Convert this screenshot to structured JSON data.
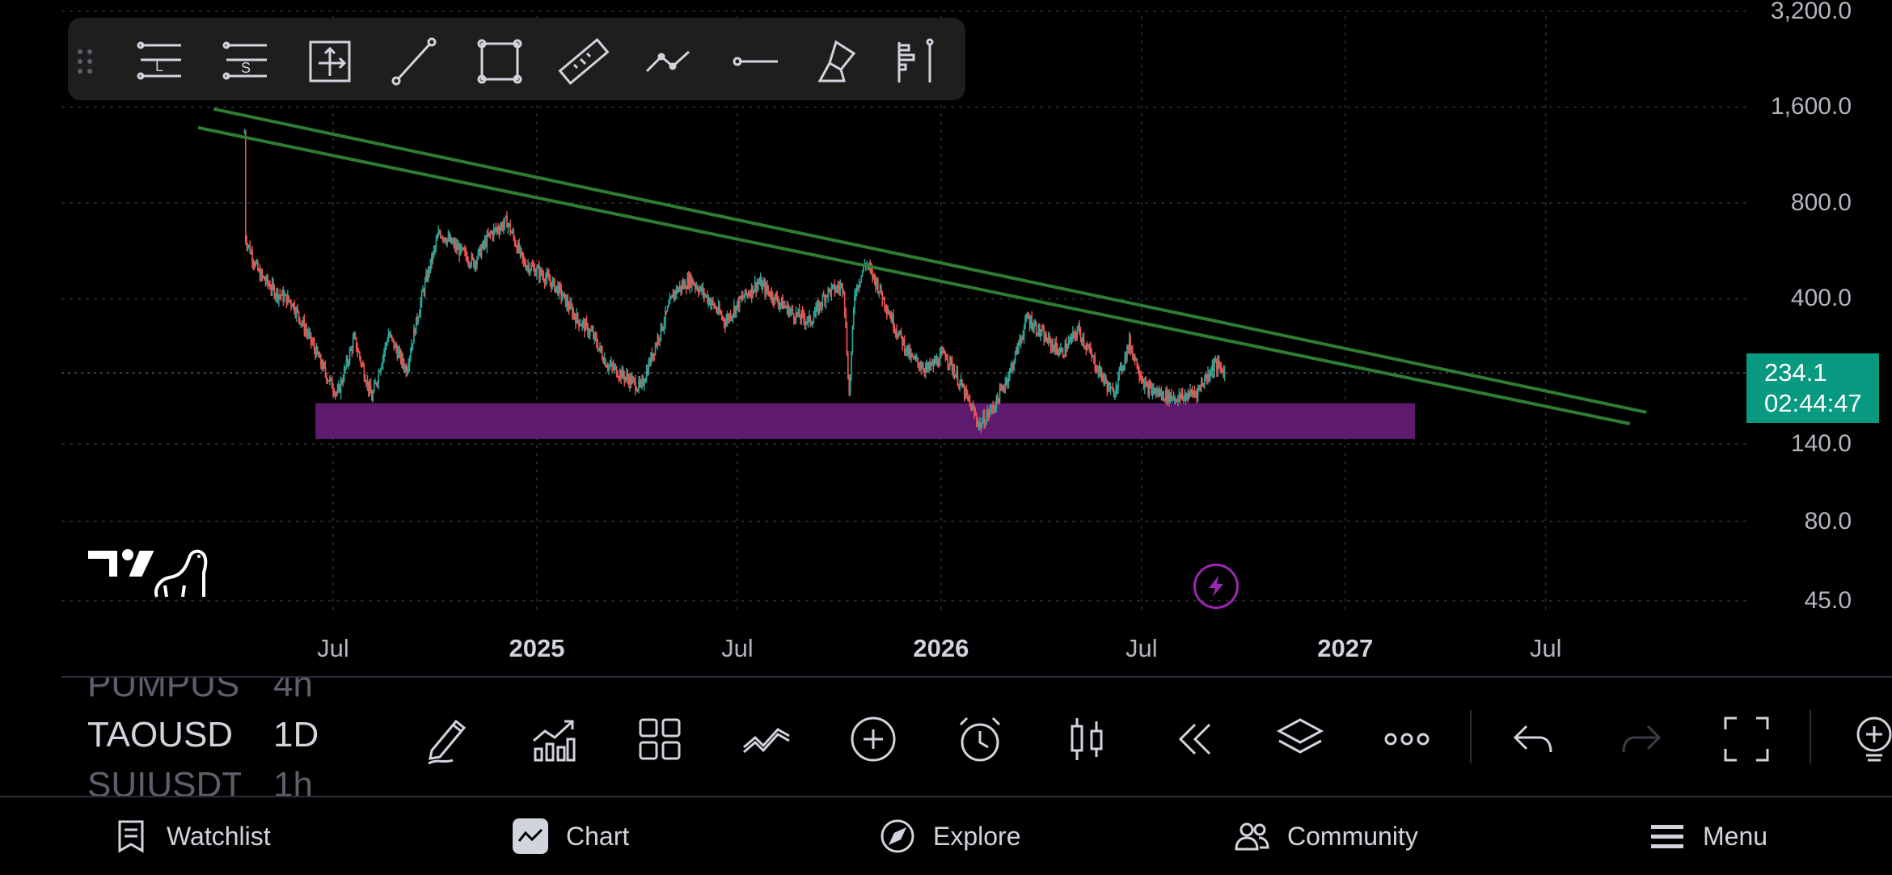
{
  "chart_data": {
    "type": "candlestick",
    "symbol": "TAOUSD",
    "interval": "1D",
    "y_scale": "log",
    "price_axis_labels": [
      "3,200.0",
      "1,600.0",
      "800.0",
      "400.0",
      "140.0",
      "80.0",
      "45.0"
    ],
    "price_axis_values": [
      3200,
      1600,
      800,
      400,
      140,
      80,
      45
    ],
    "time_axis_labels": [
      {
        "label": "Jul",
        "date": "2024-07-01",
        "bold": false
      },
      {
        "label": "2025",
        "date": "2025-01-01",
        "bold": true
      },
      {
        "label": "Jul",
        "date": "2025-07-01",
        "bold": false
      },
      {
        "label": "2026",
        "date": "2026-01-01",
        "bold": true
      },
      {
        "label": "Jul",
        "date": "2026-07-01",
        "bold": false
      },
      {
        "label": "2027",
        "date": "2027-01-01",
        "bold": true
      },
      {
        "label": "Jul",
        "date": "2027-07-01",
        "bold": false
      }
    ],
    "price_path": [
      [
        "2024-04-12",
        1330
      ],
      [
        "2024-04-13",
        620
      ],
      [
        "2024-04-25",
        480
      ],
      [
        "2024-05-10",
        420
      ],
      [
        "2024-05-25",
        390
      ],
      [
        "2024-06-10",
        300
      ],
      [
        "2024-06-25",
        230
      ],
      [
        "2024-07-05",
        200
      ],
      [
        "2024-07-20",
        300
      ],
      [
        "2024-08-05",
        195
      ],
      [
        "2024-08-20",
        310
      ],
      [
        "2024-09-05",
        240
      ],
      [
        "2024-09-20",
        420
      ],
      [
        "2024-10-05",
        650
      ],
      [
        "2024-10-20",
        580
      ],
      [
        "2024-11-05",
        520
      ],
      [
        "2024-11-20",
        640
      ],
      [
        "2024-12-05",
        700
      ],
      [
        "2024-12-20",
        520
      ],
      [
        "2025-01-05",
        480
      ],
      [
        "2025-01-20",
        430
      ],
      [
        "2025-02-05",
        350
      ],
      [
        "2025-02-20",
        310
      ],
      [
        "2025-03-05",
        250
      ],
      [
        "2025-03-20",
        230
      ],
      [
        "2025-04-05",
        210
      ],
      [
        "2025-04-20",
        300
      ],
      [
        "2025-05-05",
        420
      ],
      [
        "2025-05-20",
        460
      ],
      [
        "2025-06-05",
        400
      ],
      [
        "2025-06-20",
        340
      ],
      [
        "2025-07-05",
        400
      ],
      [
        "2025-07-20",
        450
      ],
      [
        "2025-08-05",
        400
      ],
      [
        "2025-08-20",
        360
      ],
      [
        "2025-09-05",
        340
      ],
      [
        "2025-09-20",
        420
      ],
      [
        "2025-10-05",
        440
      ],
      [
        "2025-10-10",
        200
      ],
      [
        "2025-10-15",
        420
      ],
      [
        "2025-10-25",
        520
      ],
      [
        "2025-11-05",
        440
      ],
      [
        "2025-11-20",
        330
      ],
      [
        "2025-12-05",
        260
      ],
      [
        "2025-12-20",
        240
      ],
      [
        "2026-01-05",
        270
      ],
      [
        "2026-01-20",
        210
      ],
      [
        "2026-02-05",
        160
      ],
      [
        "2026-02-20",
        190
      ],
      [
        "2026-03-05",
        240
      ],
      [
        "2026-03-20",
        350
      ],
      [
        "2026-04-05",
        300
      ],
      [
        "2026-04-20",
        270
      ],
      [
        "2026-05-05",
        320
      ],
      [
        "2026-05-20",
        250
      ],
      [
        "2026-06-05",
        200
      ],
      [
        "2026-06-20",
        290
      ],
      [
        "2026-07-05",
        210
      ],
      [
        "2026-07-20",
        200
      ],
      [
        "2026-08-05",
        195
      ],
      [
        "2026-08-20",
        205
      ],
      [
        "2026-09-05",
        250
      ],
      [
        "2026-09-15",
        234
      ]
    ],
    "trend_lines": [
      {
        "color": "#2e7d32",
        "start": [
          "2024-03-01",
          1380
        ],
        "end": [
          "2027-09-15",
          162
        ]
      },
      {
        "color": "#2e7d32",
        "start": [
          "2024-03-15",
          1580
        ],
        "end": [
          "2027-09-30",
          176
        ]
      }
    ],
    "support_zone": {
      "color": "#5e1a6e",
      "date_start": "2024-06-15",
      "date_end": "2027-03-05",
      "price_low": 145,
      "price_high": 188
    },
    "last_price": "234.1",
    "countdown": "02:44:47",
    "up_color": "#26a69a",
    "down_color": "#ef5350"
  },
  "symbol_list": [
    {
      "symbol": "PUMPUSDT",
      "interval": "4h",
      "state": "dim"
    },
    {
      "symbol": "TAOUSD",
      "interval": "1D",
      "state": "active"
    },
    {
      "symbol": "SUIUSDT",
      "interval": "1h",
      "state": "dim"
    }
  ],
  "drawing_toolbar": [
    "long-position-icon",
    "short-position-icon",
    "object-tree-icon",
    "trend-line-icon",
    "rectangle-icon",
    "ruler-icon",
    "path-icon",
    "ray-icon",
    "brush-icon",
    "anchored-vwap-icon"
  ],
  "controls": [
    "pencil-icon",
    "indicators-icon",
    "layout-icon",
    "compare-icon",
    "add-icon",
    "alert-icon",
    "candle-type-icon",
    "replay-icon",
    "layers-icon",
    "more-icon",
    "undo-icon",
    "redo-icon",
    "fullscreen-icon",
    "ideas-icon"
  ],
  "nav": {
    "watchlist": "Watchlist",
    "chart": "Chart",
    "explore": "Explore",
    "community": "Community",
    "menu": "Menu"
  }
}
